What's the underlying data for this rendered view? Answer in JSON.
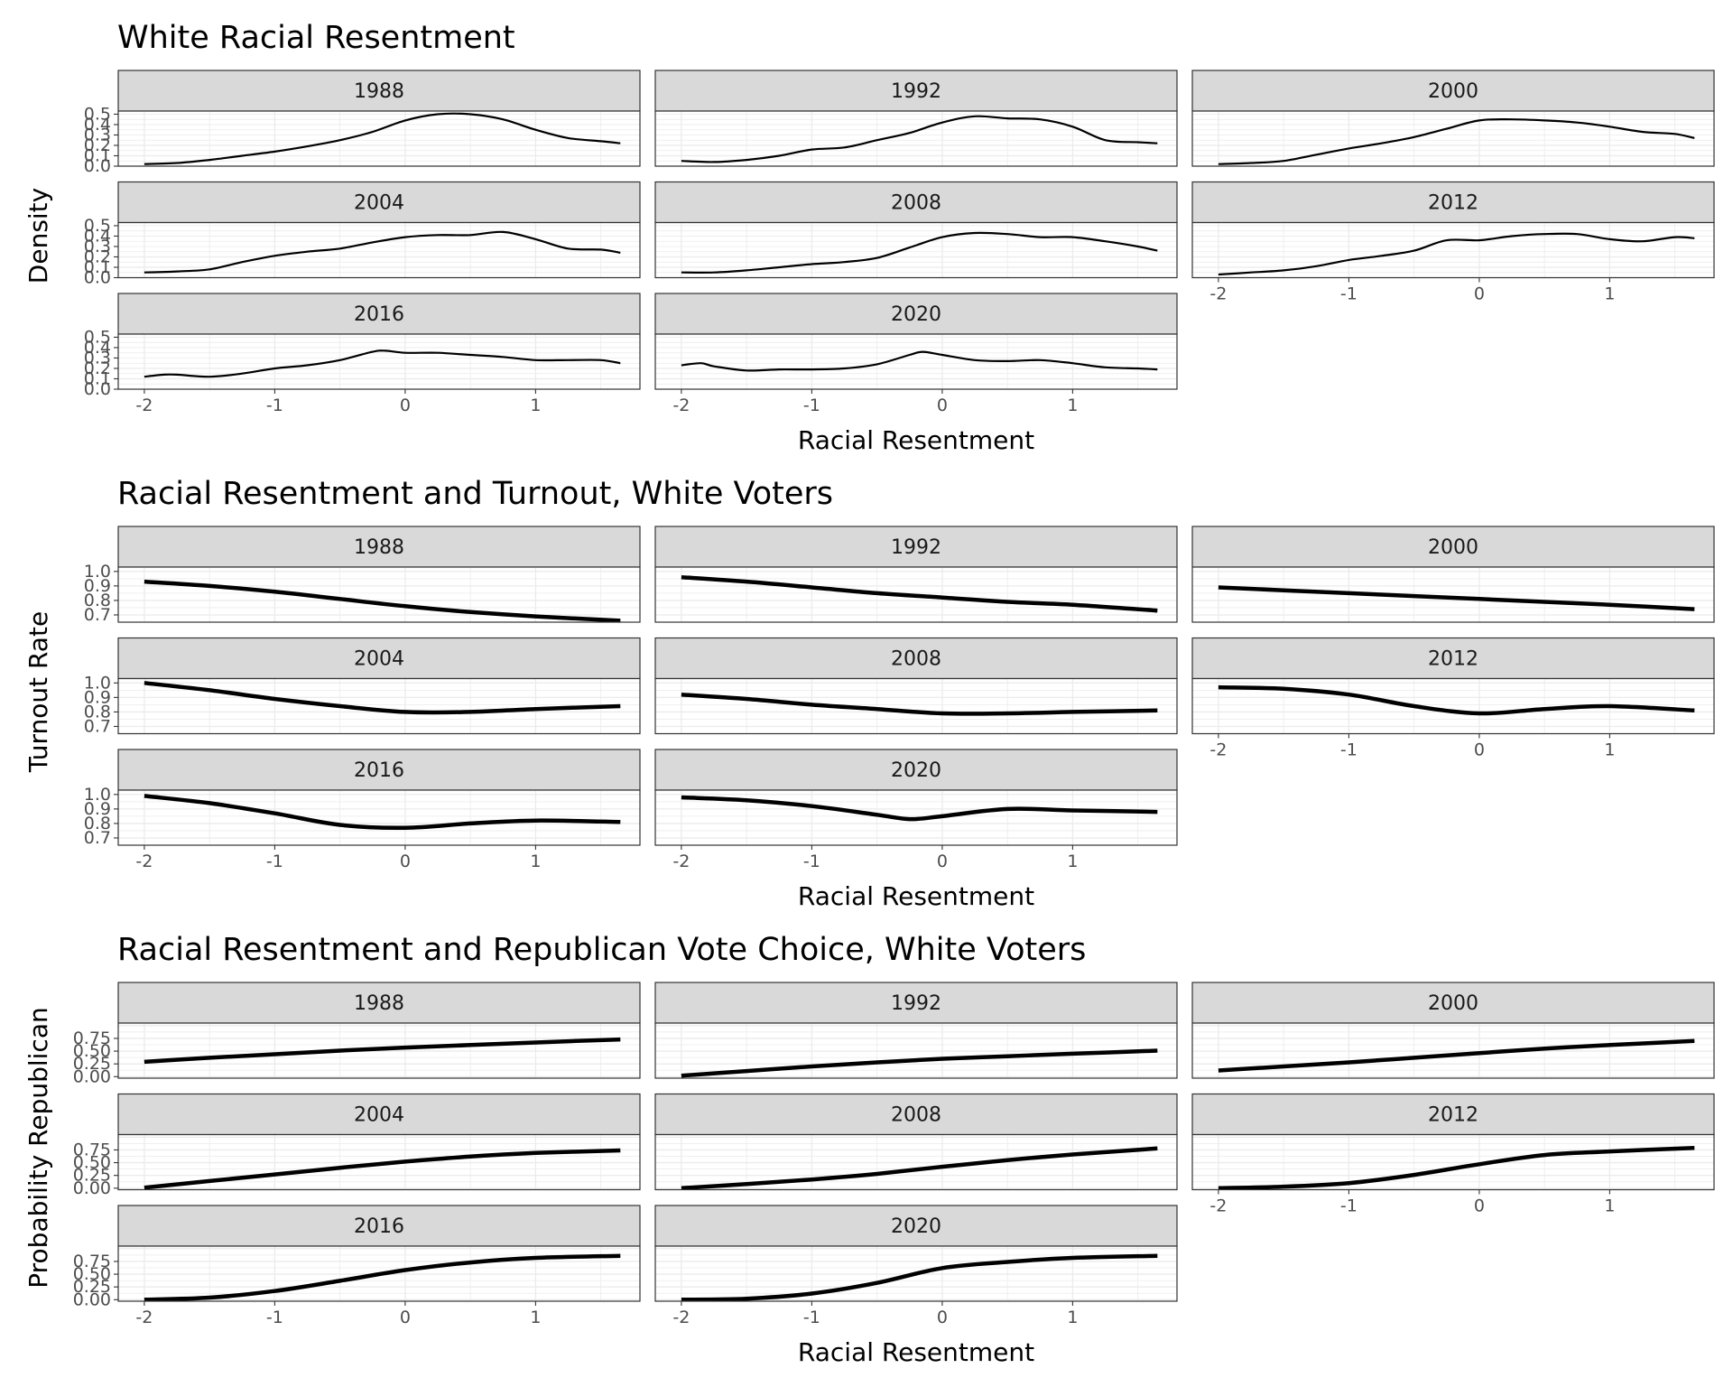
{
  "chart_data": [
    {
      "type": "line",
      "title": "White Racial Resentment",
      "xlabel": "Racial Resentment",
      "ylabel": "Density",
      "xlim": [
        -2.2,
        1.8
      ],
      "ylim": [
        0,
        0.53
      ],
      "x_ticks": [
        "-2",
        "-1",
        "0",
        "1"
      ],
      "y_ticks": [
        "0.0",
        "0.1",
        "0.2",
        "0.3",
        "0.4",
        "0.5"
      ],
      "y_tick_values": [
        0,
        0.1,
        0.2,
        0.3,
        0.4,
        0.5
      ],
      "line_width": 2.2,
      "grid": true,
      "facet_layout": "3 columns, facets titled by year in grey strips",
      "series": [
        {
          "name": "1988",
          "x": [
            -2,
            -1.75,
            -1.5,
            -1.25,
            -1,
            -0.75,
            -0.5,
            -0.25,
            0,
            0.25,
            0.5,
            0.75,
            1,
            1.25,
            1.5,
            1.65
          ],
          "y": [
            0.02,
            0.03,
            0.06,
            0.1,
            0.14,
            0.19,
            0.25,
            0.33,
            0.44,
            0.5,
            0.5,
            0.45,
            0.35,
            0.27,
            0.24,
            0.22
          ]
        },
        {
          "name": "1992",
          "x": [
            -2,
            -1.75,
            -1.5,
            -1.25,
            -1,
            -0.75,
            -0.5,
            -0.25,
            0,
            0.25,
            0.5,
            0.75,
            1,
            1.25,
            1.5,
            1.65
          ],
          "y": [
            0.05,
            0.04,
            0.06,
            0.1,
            0.16,
            0.18,
            0.25,
            0.32,
            0.42,
            0.48,
            0.46,
            0.45,
            0.38,
            0.25,
            0.23,
            0.22
          ]
        },
        {
          "name": "2000",
          "x": [
            -2,
            -1.75,
            -1.5,
            -1.25,
            -1,
            -0.75,
            -0.5,
            -0.25,
            0,
            0.25,
            0.5,
            0.75,
            1,
            1.25,
            1.5,
            1.65
          ],
          "y": [
            0.02,
            0.03,
            0.05,
            0.11,
            0.17,
            0.22,
            0.28,
            0.36,
            0.44,
            0.45,
            0.44,
            0.42,
            0.38,
            0.33,
            0.31,
            0.27
          ]
        },
        {
          "name": "2004",
          "x": [
            -2,
            -1.75,
            -1.5,
            -1.25,
            -1,
            -0.75,
            -0.5,
            -0.25,
            0,
            0.25,
            0.5,
            0.75,
            1,
            1.25,
            1.5,
            1.65
          ],
          "y": [
            0.05,
            0.06,
            0.08,
            0.15,
            0.21,
            0.25,
            0.28,
            0.34,
            0.39,
            0.41,
            0.41,
            0.44,
            0.37,
            0.28,
            0.27,
            0.24
          ]
        },
        {
          "name": "2008",
          "x": [
            -2,
            -1.75,
            -1.5,
            -1.25,
            -1,
            -0.75,
            -0.5,
            -0.25,
            0,
            0.25,
            0.5,
            0.75,
            1,
            1.25,
            1.5,
            1.65
          ],
          "y": [
            0.05,
            0.05,
            0.07,
            0.1,
            0.13,
            0.15,
            0.19,
            0.29,
            0.39,
            0.43,
            0.42,
            0.39,
            0.39,
            0.35,
            0.3,
            0.26
          ]
        },
        {
          "name": "2012",
          "x": [
            -2,
            -1.75,
            -1.5,
            -1.25,
            -1,
            -0.75,
            -0.5,
            -0.25,
            0,
            0.25,
            0.5,
            0.75,
            1,
            1.25,
            1.5,
            1.65
          ],
          "y": [
            0.03,
            0.05,
            0.07,
            0.11,
            0.17,
            0.21,
            0.26,
            0.36,
            0.36,
            0.4,
            0.42,
            0.42,
            0.37,
            0.35,
            0.39,
            0.38
          ]
        },
        {
          "name": "2016",
          "x": [
            -2,
            -1.85,
            -1.75,
            -1.5,
            -1.25,
            -1,
            -0.75,
            -0.5,
            -0.25,
            -0.15,
            0,
            0.25,
            0.5,
            0.75,
            1,
            1.25,
            1.5,
            1.65
          ],
          "y": [
            0.12,
            0.14,
            0.14,
            0.12,
            0.15,
            0.2,
            0.23,
            0.28,
            0.36,
            0.37,
            0.35,
            0.35,
            0.33,
            0.31,
            0.28,
            0.28,
            0.28,
            0.25
          ]
        },
        {
          "name": "2020",
          "x": [
            -2,
            -1.85,
            -1.75,
            -1.5,
            -1.25,
            -1,
            -0.75,
            -0.5,
            -0.25,
            -0.15,
            0,
            0.25,
            0.5,
            0.75,
            1,
            1.25,
            1.5,
            1.65
          ],
          "y": [
            0.23,
            0.25,
            0.22,
            0.18,
            0.19,
            0.19,
            0.2,
            0.24,
            0.33,
            0.36,
            0.33,
            0.28,
            0.27,
            0.28,
            0.25,
            0.21,
            0.2,
            0.19
          ]
        }
      ]
    },
    {
      "type": "line",
      "title": "Racial Resentment and Turnout, White Voters",
      "xlabel": "Racial Resentment",
      "ylabel": "Turnout Rate",
      "xlim": [
        -2.2,
        1.8
      ],
      "ylim": [
        0.65,
        1.03
      ],
      "x_ticks": [
        "-2",
        "-1",
        "0",
        "1"
      ],
      "y_ticks": [
        "0.7",
        "0.8",
        "0.9",
        "1.0"
      ],
      "y_tick_values": [
        0.7,
        0.8,
        0.9,
        1.0
      ],
      "line_width": 4.5,
      "grid": true,
      "facet_layout": "3 columns, facets titled by year in grey strips",
      "series": [
        {
          "name": "1988",
          "x": [
            -2,
            -1.5,
            -1,
            -0.5,
            0,
            0.5,
            1,
            1.65
          ],
          "y": [
            0.93,
            0.9,
            0.86,
            0.81,
            0.76,
            0.72,
            0.69,
            0.66
          ]
        },
        {
          "name": "1992",
          "x": [
            -2,
            -1.5,
            -1,
            -0.5,
            0,
            0.5,
            1,
            1.65
          ],
          "y": [
            0.96,
            0.93,
            0.89,
            0.85,
            0.82,
            0.79,
            0.77,
            0.73
          ]
        },
        {
          "name": "2000",
          "x": [
            -2,
            -1.5,
            -1,
            -0.5,
            0,
            0.5,
            1,
            1.65
          ],
          "y": [
            0.89,
            0.87,
            0.85,
            0.83,
            0.81,
            0.79,
            0.77,
            0.74
          ]
        },
        {
          "name": "2004",
          "x": [
            -2,
            -1.5,
            -1,
            -0.5,
            0,
            0.5,
            1,
            1.65
          ],
          "y": [
            1.0,
            0.95,
            0.89,
            0.84,
            0.8,
            0.8,
            0.82,
            0.84
          ]
        },
        {
          "name": "2008",
          "x": [
            -2,
            -1.5,
            -1,
            -0.5,
            0,
            0.5,
            1,
            1.65
          ],
          "y": [
            0.92,
            0.89,
            0.85,
            0.82,
            0.79,
            0.79,
            0.8,
            0.81
          ]
        },
        {
          "name": "2012",
          "x": [
            -2,
            -1.5,
            -1,
            -0.5,
            0,
            0.5,
            1,
            1.65
          ],
          "y": [
            0.97,
            0.96,
            0.92,
            0.84,
            0.79,
            0.82,
            0.84,
            0.81
          ]
        },
        {
          "name": "2016",
          "x": [
            -2,
            -1.5,
            -1,
            -0.5,
            0,
            0.5,
            1,
            1.65
          ],
          "y": [
            0.99,
            0.94,
            0.87,
            0.79,
            0.77,
            0.8,
            0.82,
            0.81
          ]
        },
        {
          "name": "2020",
          "x": [
            -2,
            -1.5,
            -1,
            -0.5,
            -0.25,
            0,
            0.5,
            1,
            1.65
          ],
          "y": [
            0.98,
            0.96,
            0.92,
            0.86,
            0.83,
            0.85,
            0.9,
            0.89,
            0.88
          ]
        }
      ]
    },
    {
      "type": "line",
      "title": "Racial Resentment and Republican Vote Choice, White Voters",
      "xlabel": "Racial Resentment",
      "ylabel": "Probability Republican",
      "xlim": [
        -2.2,
        1.8
      ],
      "ylim": [
        -0.03,
        1.05
      ],
      "x_ticks": [
        "-2",
        "-1",
        "0",
        "1"
      ],
      "y_ticks": [
        "0.00",
        "0.25",
        "0.50",
        "0.75"
      ],
      "y_tick_values": [
        0,
        0.25,
        0.5,
        0.75
      ],
      "line_width": 4.5,
      "grid": true,
      "facet_layout": "3 columns, facets titled by year in grey strips",
      "series": [
        {
          "name": "1988",
          "x": [
            -2,
            -1.5,
            -1,
            -0.5,
            0,
            0.5,
            1,
            1.65
          ],
          "y": [
            0.29,
            0.37,
            0.44,
            0.51,
            0.57,
            0.62,
            0.67,
            0.73
          ]
        },
        {
          "name": "1992",
          "x": [
            -2,
            -1.5,
            -1,
            -0.5,
            0,
            0.5,
            1,
            1.65
          ],
          "y": [
            0.02,
            0.11,
            0.2,
            0.28,
            0.35,
            0.4,
            0.45,
            0.51
          ]
        },
        {
          "name": "2000",
          "x": [
            -2,
            -1.5,
            -1,
            -0.5,
            0,
            0.5,
            1,
            1.65
          ],
          "y": [
            0.12,
            0.2,
            0.28,
            0.37,
            0.46,
            0.55,
            0.62,
            0.7
          ]
        },
        {
          "name": "2004",
          "x": [
            -2,
            -1.5,
            -1,
            -0.5,
            0,
            0.5,
            1,
            1.65
          ],
          "y": [
            0.01,
            0.14,
            0.27,
            0.4,
            0.52,
            0.62,
            0.69,
            0.74
          ]
        },
        {
          "name": "2008",
          "x": [
            -2,
            -1.5,
            -1,
            -0.5,
            0,
            0.5,
            1,
            1.65
          ],
          "y": [
            0.0,
            0.08,
            0.17,
            0.28,
            0.42,
            0.55,
            0.66,
            0.78
          ]
        },
        {
          "name": "2012",
          "x": [
            -2,
            -1.5,
            -1,
            -0.5,
            0,
            0.5,
            1,
            1.65
          ],
          "y": [
            0.0,
            0.03,
            0.1,
            0.26,
            0.47,
            0.65,
            0.72,
            0.79
          ]
        },
        {
          "name": "2016",
          "x": [
            -2,
            -1.5,
            -1,
            -0.5,
            0,
            0.5,
            1,
            1.65
          ],
          "y": [
            0.0,
            0.04,
            0.17,
            0.37,
            0.58,
            0.73,
            0.82,
            0.86
          ]
        },
        {
          "name": "2020",
          "x": [
            -2,
            -1.5,
            -1,
            -0.5,
            0,
            0.5,
            1,
            1.65
          ],
          "y": [
            0.0,
            0.02,
            0.12,
            0.33,
            0.62,
            0.74,
            0.82,
            0.86
          ]
        }
      ]
    }
  ]
}
